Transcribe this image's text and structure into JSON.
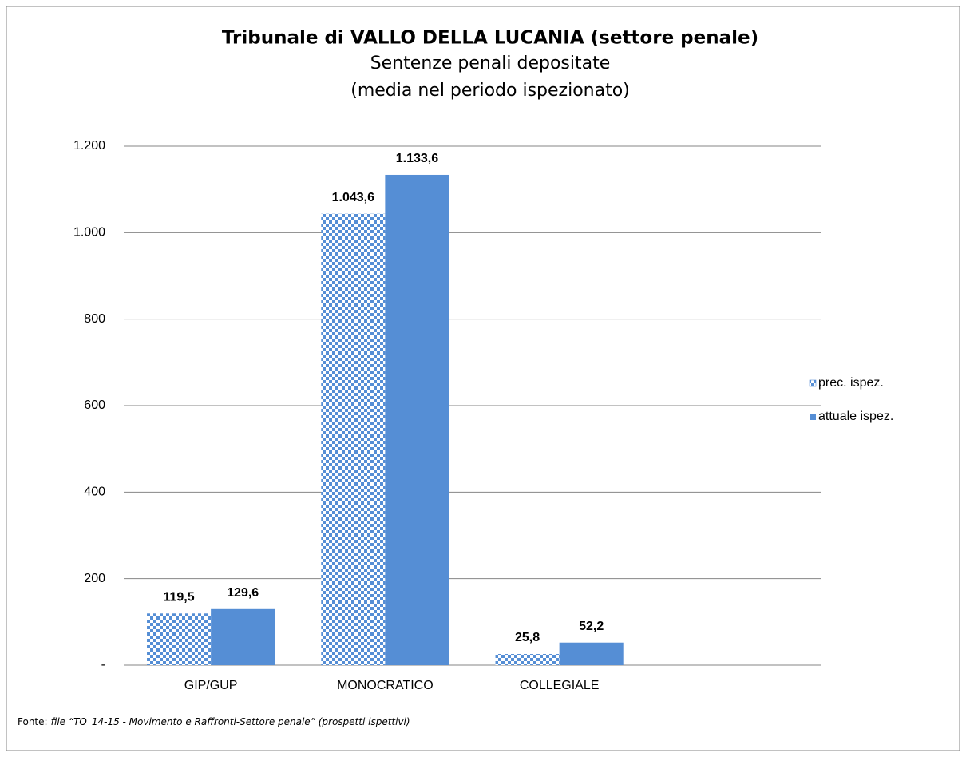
{
  "chart_data": {
    "type": "bar",
    "title": "Tribunale di VALLO DELLA LUCANIA (settore penale)",
    "subtitle": [
      "Sentenze penali depositate",
      "(media nel periodo ispezionato)"
    ],
    "categories": [
      "GIP/GUP",
      "MONOCRATICO",
      "COLLEGIALE",
      null
    ],
    "series": [
      {
        "name": "prec. ispez.",
        "color": "#558ed5",
        "pattern": "checker",
        "values": [
          119.5,
          1043.6,
          25.8,
          null
        ],
        "value_labels": [
          "119,5",
          "1.043,6",
          "25,8",
          null
        ]
      },
      {
        "name": "attuale ispez.",
        "color": "#558ed5",
        "values": [
          129.6,
          1133.6,
          52.2,
          null
        ],
        "value_labels": [
          "129,6",
          "1.133,6",
          "52,2",
          null
        ]
      }
    ],
    "ylim": [
      0,
      1200
    ],
    "yticks": [
      {
        "value": 0,
        "label": "-"
      },
      200,
      400,
      600,
      800,
      {
        "value": 1000,
        "label": "1.000"
      },
      {
        "value": 1200,
        "label": "1.200"
      }
    ],
    "grid": true,
    "legend": "right",
    "source_label": "Fonte:",
    "source": "file “TO_14-15 - Movimento e Raffronti-Settore penale” (prospetti ispettivi)"
  }
}
